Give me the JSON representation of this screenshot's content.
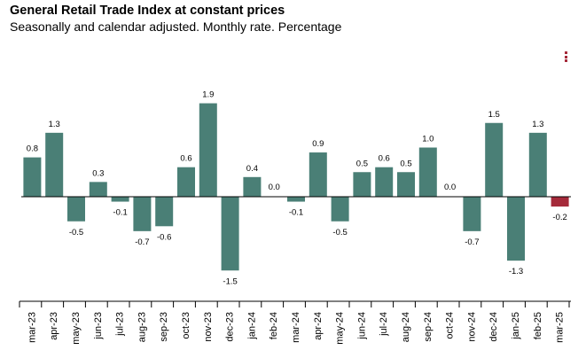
{
  "chart_data": {
    "type": "bar",
    "title": "General Retail Trade Index at constant prices",
    "subtitle": "Seasonally and calendar adjusted. Monthly rate. Percentage",
    "categories": [
      "mar-23",
      "apr-23",
      "may-23",
      "jun-23",
      "jul-23",
      "aug-23",
      "sep-23",
      "oct-23",
      "nov-23",
      "dec-23",
      "jan-24",
      "feb-24",
      "mar-24",
      "apr-24",
      "may-24",
      "jun-24",
      "jul-24",
      "aug-24",
      "sep-24",
      "oct-24",
      "nov-24",
      "dec-24",
      "jan-25",
      "feb-25",
      "mar-25"
    ],
    "values": [
      0.8,
      1.3,
      -0.5,
      0.3,
      -0.1,
      -0.7,
      -0.6,
      0.6,
      1.9,
      -1.5,
      0.4,
      0.0,
      -0.1,
      0.9,
      -0.5,
      0.5,
      0.6,
      0.5,
      1.0,
      0.0,
      -0.7,
      1.5,
      -1.3,
      1.3,
      -0.2
    ],
    "value_labels": [
      "0.8",
      "1.3",
      "-0.5",
      "0.3",
      "-0.1",
      "-0.7",
      "-0.6",
      "0.6",
      "1.9",
      "-1.5",
      "0.4",
      "0.0",
      "-0.1",
      "0.9",
      "-0.5",
      "0.5",
      "0.6",
      "0.5",
      "1.0",
      "0.0",
      "-0.7",
      "1.5",
      "-1.3",
      "1.3",
      "-0.2"
    ],
    "ylim": [
      -2.0,
      2.0
    ],
    "xlabel": "",
    "ylabel": "",
    "grid": false,
    "colors": {
      "default": "#4a7f76",
      "highlight": "#a52a3a"
    },
    "highlight_index": 24
  },
  "icons": {
    "menu": "kebab-menu-icon"
  }
}
